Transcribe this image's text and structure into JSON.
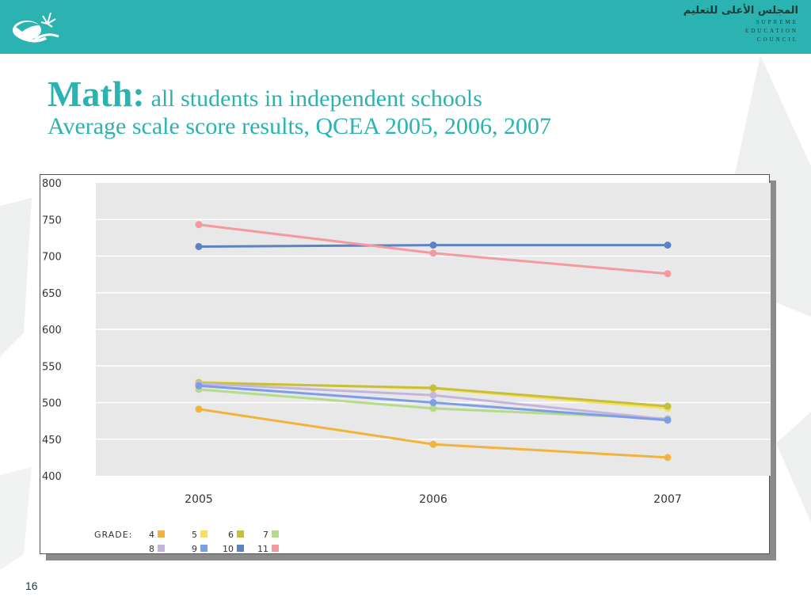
{
  "header": {
    "arabic_title": "المجلس الأعلى للتعليم",
    "english_lines": [
      "SUPREME",
      "EDUCATION",
      "COUNCIL"
    ],
    "bar_color": "#2ab3b0"
  },
  "slide": {
    "title_main": "Math:",
    "title_sub": "all students in independent schools",
    "subtitle": "Average scale score results, QCEA 2005, 2006, 2007",
    "title_color": "#2ab3b0",
    "page_number": "16"
  },
  "chart_data": {
    "type": "line",
    "x": [
      "2005",
      "2006",
      "2007"
    ],
    "ylim": [
      400,
      800
    ],
    "yticks": [
      400,
      450,
      500,
      550,
      600,
      650,
      700,
      750,
      800
    ],
    "legend_title": "GRADE:",
    "legend_position": "bottom-left",
    "grid": true,
    "series": [
      {
        "name": "4",
        "color": "#f0b43c",
        "values": [
          491,
          443,
          425
        ]
      },
      {
        "name": "5",
        "color": "#f5df63",
        "values": [
          528,
          519,
          492
        ]
      },
      {
        "name": "6",
        "color": "#c5c039",
        "values": [
          527,
          520,
          495
        ]
      },
      {
        "name": "7",
        "color": "#b3dc8a",
        "values": [
          518,
          492,
          478
        ]
      },
      {
        "name": "8",
        "color": "#c4b5dc",
        "values": [
          526,
          510,
          477
        ]
      },
      {
        "name": "9",
        "color": "#7d9ee6",
        "values": [
          523,
          500,
          476
        ]
      },
      {
        "name": "10",
        "color": "#5b83c1",
        "values": [
          713,
          715,
          715
        ]
      },
      {
        "name": "11",
        "color": "#f29a9f",
        "values": [
          743,
          704,
          676
        ]
      }
    ]
  }
}
